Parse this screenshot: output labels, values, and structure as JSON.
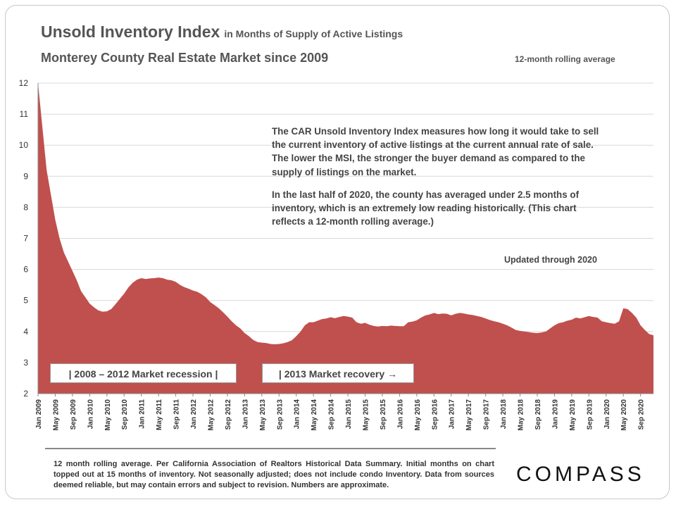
{
  "header": {
    "title": "Unsold Inventory Index",
    "title_suffix": "in Months of Supply of Active Listings",
    "subtitle": "Monterey County Real Estate Market since 2009",
    "rolling_note": "12-month rolling average"
  },
  "description": {
    "p1": "The CAR Unsold Inventory Index measures how long it would take to sell the current inventory of active listings at the current annual rate of sale. The lower the MSI, the stronger the buyer demand as compared to the supply of listings on the market.",
    "p2": "In the last half of 2020, the county has averaged under 2.5 months of inventory, which is an extremely low reading historically. (This chart reflects a 12-month rolling average.)"
  },
  "updated": "Updated through 2020",
  "annotations": {
    "recession": "|   2008 – 2012 Market recession   |",
    "recovery": "| 2013 Market recovery →"
  },
  "footnote": "12 month rolling average. Per California Association of Realtors Historical Data Summary. Initial months on chart topped out at 15 months of inventory. Not seasonally adjusted; does not include condo Inventory. Data from sources deemed reliable, but may contain errors and subject to revision. Numbers are approximate.",
  "logo": "COMPASS",
  "colors": {
    "area_fill": "#c0504d",
    "grid": "#d9d9d9",
    "axis": "#888888"
  },
  "chart_data": {
    "type": "area",
    "ylim": [
      2,
      12
    ],
    "yticks": [
      2,
      3,
      4,
      5,
      6,
      7,
      8,
      9,
      10,
      11,
      12
    ],
    "grid": true,
    "xtick_labels": [
      "Jan 2009",
      "May 2009",
      "Sep 2009",
      "Jan 2010",
      "May 2010",
      "Sep 2010",
      "Jan 2011",
      "May 2011",
      "Sep 2011",
      "Jan 2012",
      "May 2012",
      "Sep 2012",
      "Jan 2013",
      "May 2013",
      "Sep 2013",
      "Jan 2014",
      "May 2014",
      "Sep 2014",
      "Jan 2015",
      "May 2015",
      "Sep 2015",
      "Jan 2016",
      "May 2016",
      "Sep 2016",
      "Jan 2017",
      "May 2017",
      "Sep 2017",
      "Jan 2018",
      "May 2018",
      "Sep 2018",
      "Jan 2019",
      "May 2019",
      "Sep 2019",
      "Jan 2020",
      "May 2020",
      "Sep 2020"
    ],
    "x": [
      "Jan 2009",
      "Feb 2009",
      "Mar 2009",
      "Apr 2009",
      "May 2009",
      "Jun 2009",
      "Jul 2009",
      "Aug 2009",
      "Sep 2009",
      "Oct 2009",
      "Nov 2009",
      "Dec 2009",
      "Jan 2010",
      "Feb 2010",
      "Mar 2010",
      "Apr 2010",
      "May 2010",
      "Jun 2010",
      "Jul 2010",
      "Aug 2010",
      "Sep 2010",
      "Oct 2010",
      "Nov 2010",
      "Dec 2010",
      "Jan 2011",
      "Feb 2011",
      "Mar 2011",
      "Apr 2011",
      "May 2011",
      "Jun 2011",
      "Jul 2011",
      "Aug 2011",
      "Sep 2011",
      "Oct 2011",
      "Nov 2011",
      "Dec 2011",
      "Jan 2012",
      "Feb 2012",
      "Mar 2012",
      "Apr 2012",
      "May 2012",
      "Jun 2012",
      "Jul 2012",
      "Aug 2012",
      "Sep 2012",
      "Oct 2012",
      "Nov 2012",
      "Dec 2012",
      "Jan 2013",
      "Feb 2013",
      "Mar 2013",
      "Apr 2013",
      "May 2013",
      "Jun 2013",
      "Jul 2013",
      "Aug 2013",
      "Sep 2013",
      "Oct 2013",
      "Nov 2013",
      "Dec 2013",
      "Jan 2014",
      "Feb 2014",
      "Mar 2014",
      "Apr 2014",
      "May 2014",
      "Jun 2014",
      "Jul 2014",
      "Aug 2014",
      "Sep 2014",
      "Oct 2014",
      "Nov 2014",
      "Dec 2014",
      "Jan 2015",
      "Feb 2015",
      "Mar 2015",
      "Apr 2015",
      "May 2015",
      "Jun 2015",
      "Jul 2015",
      "Aug 2015",
      "Sep 2015",
      "Oct 2015",
      "Nov 2015",
      "Dec 2015",
      "Jan 2016",
      "Feb 2016",
      "Mar 2016",
      "Apr 2016",
      "May 2016",
      "Jun 2016",
      "Jul 2016",
      "Aug 2016",
      "Sep 2016",
      "Oct 2016",
      "Nov 2016",
      "Dec 2016",
      "Jan 2017",
      "Feb 2017",
      "Mar 2017",
      "Apr 2017",
      "May 2017",
      "Jun 2017",
      "Jul 2017",
      "Aug 2017",
      "Sep 2017",
      "Oct 2017",
      "Nov 2017",
      "Dec 2017",
      "Jan 2018",
      "Feb 2018",
      "Mar 2018",
      "Apr 2018",
      "May 2018",
      "Jun 2018",
      "Jul 2018",
      "Aug 2018",
      "Sep 2018",
      "Oct 2018",
      "Nov 2018",
      "Dec 2018",
      "Jan 2019",
      "Feb 2019",
      "Mar 2019",
      "Apr 2019",
      "May 2019",
      "Jun 2019",
      "Jul 2019",
      "Aug 2019",
      "Sep 2019",
      "Oct 2019",
      "Nov 2019",
      "Dec 2019",
      "Jan 2020",
      "Feb 2020",
      "Mar 2020",
      "Apr 2020",
      "May 2020",
      "Jun 2020",
      "Jul 2020",
      "Aug 2020",
      "Sep 2020",
      "Oct 2020",
      "Nov 2020",
      "Dec 2020"
    ],
    "series": [
      {
        "values": [
          12.0,
          10.6,
          9.2,
          8.4,
          7.6,
          7.0,
          6.55,
          6.25,
          5.95,
          5.65,
          5.3,
          5.1,
          4.9,
          4.78,
          4.68,
          4.64,
          4.65,
          4.72,
          4.88,
          5.05,
          5.22,
          5.42,
          5.57,
          5.67,
          5.72,
          5.69,
          5.71,
          5.72,
          5.74,
          5.72,
          5.67,
          5.65,
          5.6,
          5.5,
          5.43,
          5.38,
          5.32,
          5.28,
          5.2,
          5.1,
          4.95,
          4.85,
          4.75,
          4.62,
          4.48,
          4.33,
          4.2,
          4.1,
          3.95,
          3.85,
          3.73,
          3.66,
          3.64,
          3.63,
          3.6,
          3.59,
          3.6,
          3.62,
          3.66,
          3.72,
          3.85,
          4.0,
          4.2,
          4.3,
          4.3,
          4.35,
          4.4,
          4.42,
          4.46,
          4.43,
          4.47,
          4.5,
          4.48,
          4.45,
          4.3,
          4.25,
          4.28,
          4.22,
          4.18,
          4.16,
          4.18,
          4.17,
          4.19,
          4.18,
          4.17,
          4.17,
          4.3,
          4.32,
          4.36,
          4.45,
          4.52,
          4.55,
          4.6,
          4.56,
          4.58,
          4.57,
          4.52,
          4.57,
          4.6,
          4.58,
          4.55,
          4.53,
          4.5,
          4.47,
          4.42,
          4.37,
          4.33,
          4.3,
          4.25,
          4.2,
          4.13,
          4.05,
          4.02,
          4.0,
          3.98,
          3.96,
          3.95,
          3.97,
          4.0,
          4.1,
          4.2,
          4.27,
          4.3,
          4.35,
          4.38,
          4.45,
          4.42,
          4.46,
          4.5,
          4.47,
          4.45,
          4.33,
          4.3,
          4.27,
          4.25,
          4.33,
          4.75,
          4.72,
          4.6,
          4.45,
          4.2,
          4.05,
          3.92,
          3.88
        ]
      }
    ]
  }
}
